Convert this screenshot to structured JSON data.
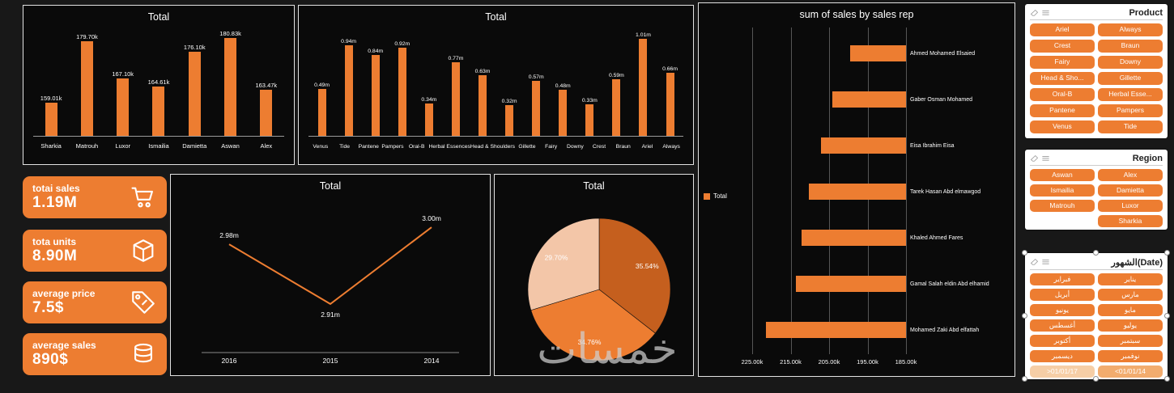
{
  "watermark": "خمسات",
  "colors": {
    "accent": "#ED7D31",
    "accent_dark": "#C55F1E",
    "accent_light": "#F3C6A8",
    "panel_bg": "#0a0a0a",
    "page_bg": "#181818"
  },
  "kpis": [
    {
      "label": "totai sales",
      "value": "1.19M",
      "icon": "cart-icon"
    },
    {
      "label": "tota units",
      "value": "8.90M",
      "icon": "box-icon"
    },
    {
      "label": "average price",
      "value": "7.5$",
      "icon": "tag-icon"
    },
    {
      "label": "average sales",
      "value": "890$",
      "icon": "coins-icon"
    }
  ],
  "chart_data": [
    {
      "id": "sales_by_region",
      "type": "bar",
      "title": "Total",
      "categories": [
        "Sharkia",
        "Matrouh",
        "Luxor",
        "Ismailia",
        "Damietta",
        "Aswan",
        "Alex"
      ],
      "values": [
        159.01,
        179.7,
        167.1,
        164.61,
        176.1,
        180.83,
        163.47
      ],
      "value_labels": [
        "159.01k",
        "179.70k",
        "167.10k",
        "164.61k",
        "176.10k",
        "180.83k",
        "163.47k"
      ],
      "unit": "k",
      "ylim": [
        148,
        184
      ],
      "grid": false,
      "bar_color": "#ED7D31"
    },
    {
      "id": "sales_by_product",
      "type": "bar",
      "title": "Total",
      "categories": [
        "Venus",
        "Tide",
        "Pantene",
        "Pampers",
        "Oral-B",
        "Herbal Essences",
        "Head & Shoulders",
        "Gillette",
        "Fairy",
        "Downy",
        "Crest",
        "Braun",
        "Ariel",
        "Always"
      ],
      "values": [
        0.49,
        0.94,
        0.84,
        0.92,
        0.34,
        0.77,
        0.63,
        0.32,
        0.57,
        0.48,
        0.33,
        0.59,
        1.01,
        0.66
      ],
      "value_labels": [
        "0.49m",
        "0.94m",
        "0.84m",
        "0.92m",
        "0.34m",
        "0.77m",
        "0.63m",
        "0.32m",
        "0.57m",
        "0.48m",
        "0.33m",
        "0.59m",
        "1.01m",
        "0.66m"
      ],
      "unit": "m",
      "ylim": [
        0,
        1.12
      ],
      "grid": false,
      "bar_color": "#ED7D31"
    },
    {
      "id": "sales_by_year",
      "type": "line",
      "title": "Total",
      "categories": [
        "2016",
        "2015",
        "2014"
      ],
      "values": [
        2.98,
        2.91,
        3.0
      ],
      "value_labels": [
        "2.98m",
        "2.91m",
        "3.00m"
      ],
      "label_positions": [
        "above",
        "below",
        "above"
      ],
      "ylim": [
        2.87,
        3.02
      ],
      "grid": false,
      "line_color": "#ED7D31"
    },
    {
      "id": "sales_share",
      "type": "pie",
      "title": "Total",
      "slices": [
        {
          "label": "35.54%",
          "value": 35.54,
          "color": "#C55F1E"
        },
        {
          "label": "34.76%",
          "value": 34.76,
          "color": "#ED7D31"
        },
        {
          "label": "29.70%",
          "value": 29.7,
          "color": "#F3C6A8"
        }
      ],
      "start_angle_deg": -90
    },
    {
      "id": "sales_by_rep",
      "type": "bar",
      "orientation": "horizontal",
      "title": "sum of sales by sales rep",
      "legend": {
        "label": "Total",
        "position": "left-middle",
        "color": "#ED7D31"
      },
      "categories": [
        "Ahmed Mohamed Elsaied",
        "Gaber Osman Mohamed",
        "Eisa Ibrahim Eisa",
        "Tarek Hasan Abd elmawgod",
        "Khaled Ahmed Fares",
        "Gamal Salah eldin Abd elhamid",
        "Mohamed Zaki Abd elfattah"
      ],
      "values": [
        199.6,
        204.1,
        207.2,
        210.3,
        212.2,
        213.6,
        221.5
      ],
      "unit": "k",
      "xlim": [
        185,
        225
      ],
      "axis_reversed": true,
      "grid": true,
      "x_ticks": [
        "225.00k",
        "215.00k",
        "205.00k",
        "195.00k",
        "185.00k"
      ],
      "bar_color": "#ED7D31"
    }
  ],
  "slicers": {
    "product": {
      "title": "Product",
      "items": [
        "Ariel",
        "Always",
        "Crest",
        "Braun",
        "Fairy",
        "Downy",
        "Head & Sho...",
        "Gillette",
        "Oral-B",
        "Herbal Esse...",
        "Pantene",
        "Pampers",
        "Venus",
        "Tide"
      ]
    },
    "region": {
      "title": "Region",
      "items": [
        "Aswan",
        "Alex",
        "Ismailia",
        "Damietta",
        "Matrouh",
        "Luxor",
        "",
        "Sharkia"
      ]
    },
    "date": {
      "title": "الشهور(Date)",
      "items": [
        {
          "label": "فبراير"
        },
        {
          "label": "يناير"
        },
        {
          "label": "أبريل"
        },
        {
          "label": "مارس"
        },
        {
          "label": "يونيو"
        },
        {
          "label": "مايو"
        },
        {
          "label": "أغسطس"
        },
        {
          "label": "يوليو"
        },
        {
          "label": "أكتوبر"
        },
        {
          "label": "سبتمبر"
        },
        {
          "label": "ديسمبر"
        },
        {
          "label": "نوفمبر"
        },
        {
          "label": ">01/01/17",
          "variant": "light"
        },
        {
          "label": "<01/01/14",
          "variant": "light2"
        }
      ]
    }
  }
}
